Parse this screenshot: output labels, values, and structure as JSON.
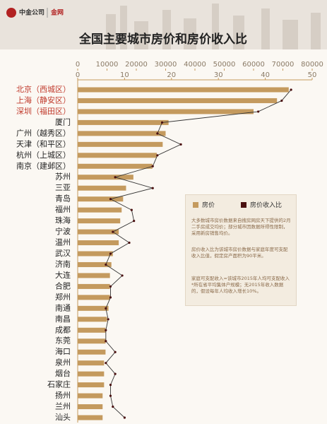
{
  "header": {
    "brand": "中金公司",
    "site": "金网"
  },
  "chart_data": {
    "type": "bar",
    "orientation": "horizontal",
    "title": "全国主要城市房价和房价收入比",
    "categories": [
      "北京（西城区）",
      "上海（静安区）",
      "深圳（福田区）",
      "厦门",
      "广州（越秀区）",
      "天津（和平区）",
      "杭州（上城区）",
      "南京（建邺区）",
      "苏州",
      "三亚",
      "青岛",
      "福州",
      "珠海",
      "宁波",
      "温州",
      "武汉",
      "济南",
      "大连",
      "合肥",
      "郑州",
      "南通",
      "南昌",
      "成都",
      "东莞",
      "海口",
      "泉州",
      "烟台",
      "石家庄",
      "扬州",
      "兰州",
      "汕头"
    ],
    "highlighted_categories": [
      "北京（西城区）",
      "上海（静安区）",
      "深圳（福田区）"
    ],
    "highlight_color": "#c0392b",
    "series": [
      {
        "name": "房价",
        "color": "#c49a5e",
        "axis": "x",
        "values": [
          72000,
          68000,
          60000,
          31000,
          30000,
          29000,
          27000,
          25500,
          19000,
          16500,
          15500,
          15000,
          14500,
          14000,
          14000,
          12000,
          11500,
          11000,
          11000,
          11000,
          10500,
          10000,
          9500,
          9500,
          9500,
          9000,
          9000,
          9000,
          8500,
          8500,
          8500
        ]
      },
      {
        "name": "房价收入比",
        "color": "#4a1010",
        "axis": "x2",
        "values": [
          45.5,
          43.5,
          38.5,
          18,
          17,
          22,
          17,
          16,
          8,
          16,
          7,
          11.5,
          12,
          7.5,
          11,
          7,
          6,
          9.5,
          7,
          7,
          6,
          6.5,
          6,
          6,
          8,
          6,
          8,
          7,
          7,
          7.5,
          10
        ]
      }
    ],
    "xlim": [
      0,
      80000
    ],
    "xticks": [
      0,
      10000,
      20000,
      30000,
      40000,
      50000,
      60000,
      70000,
      80000
    ],
    "x2lim": [
      0,
      50
    ],
    "x2ticks": [
      0,
      10,
      20,
      30,
      40,
      50
    ],
    "legend": "center-right",
    "notes": [
      "大多数城市房价数据来自搜房网房天下提供的2月二手房成交均价；部分城市因数据所得性限制，采用新房销售均价。",
      "房价收入比为该城市房价数据与家庭年度可支配收入比值，假定房产面积为90平米。",
      "家庭可支配收入=该城市2015年人均可支配收入*所在省平均集体户规模；无2015年收入数据的，假设每年人均收入增长10%。"
    ]
  }
}
